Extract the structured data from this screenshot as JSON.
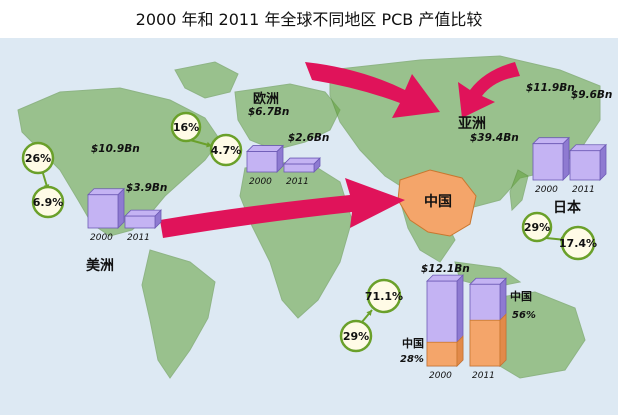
{
  "title": "2000 年和 2011 年全球不同地区 PCB 产值比较",
  "colors": {
    "ocean": "#dde9f3",
    "land": "#62a23a",
    "china": "#f4a56a",
    "bar": "#c4b3f3",
    "bar_side": "#8e7ad1",
    "arrow": "#e0135a",
    "badge_ring": "#6aa02a",
    "badge_fill": "#fffbe6"
  },
  "chart_data": {
    "type": "bar",
    "title": "2000 年和 2011 年全球不同地区 PCB 产值比较",
    "unit": "Bn",
    "regions": [
      {
        "name": "美洲",
        "x_labels": [
          "2000",
          "2011"
        ],
        "values": [
          10.9,
          3.9
        ],
        "value_labels": [
          "$10.9Bn",
          "$3.9Bn"
        ],
        "share": [
          "26%",
          "6.9%"
        ]
      },
      {
        "name": "欧洲",
        "x_labels": [
          "2000",
          "2011"
        ],
        "values": [
          6.7,
          2.6
        ],
        "value_labels": [
          "$6.7Bn",
          "$2.6Bn"
        ],
        "share": [
          "16%",
          "4.7%"
        ]
      },
      {
        "name": "亚洲",
        "x_labels": [
          "2000",
          "2011"
        ],
        "values": [
          12.1,
          39.4
        ],
        "value_labels": [
          "$12.1Bn",
          "$39.4Bn"
        ],
        "share": [
          "29%",
          "71.1%"
        ],
        "china_label": "中国",
        "china_share": [
          "28%",
          "56%"
        ]
      },
      {
        "name": "日本",
        "x_labels": [
          "2000",
          "2011"
        ],
        "values": [
          11.9,
          9.6
        ],
        "value_labels": [
          "$11.9Bn",
          "$9.6Bn"
        ],
        "share": [
          "29%",
          "17.4%"
        ]
      }
    ],
    "map_labels": [
      "亚洲",
      "中国",
      "欧洲",
      "美洲",
      "日本"
    ]
  }
}
